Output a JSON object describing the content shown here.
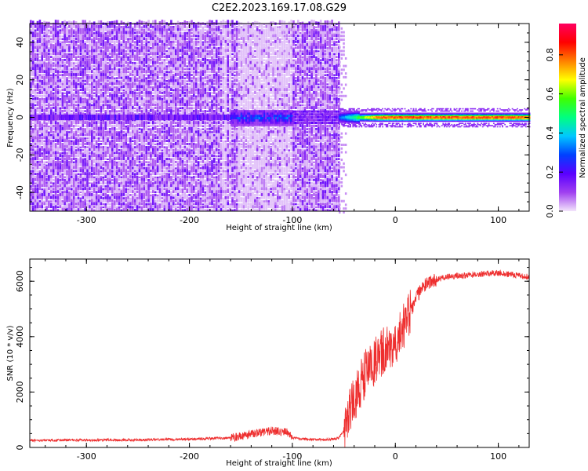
{
  "title": "C2E2.2023.169.17.08.G29",
  "chart_data": [
    {
      "type": "heatmap",
      "xlabel": "Height of straight line (km)",
      "ylabel": "Frequency (Hz)",
      "xlim": [
        -355,
        130
      ],
      "ylim": [
        -50,
        50
      ],
      "x_ticks": [
        -300,
        -200,
        -100,
        0,
        100
      ],
      "x_tick_labels": [
        "-300",
        "-200",
        "-100",
        "0",
        "100"
      ],
      "y_ticks": [
        -40,
        -20,
        0,
        20,
        40
      ],
      "y_tick_labels": [
        "-40",
        "-20",
        "0",
        "20",
        "40"
      ],
      "colorbar": {
        "label": "Normalized spectral amplitude",
        "range": [
          0,
          0.96
        ],
        "ticks": [
          0.0,
          0.2,
          0.4,
          0.6,
          0.8
        ],
        "tick_labels": [
          "0.0",
          "0.2",
          "0.4",
          "0.6",
          "0.8"
        ],
        "colormap": [
          "#f3e4fb",
          "#a040f0",
          "#5a00ff",
          "#0040ff",
          "#00c8ff",
          "#00ff80",
          "#40ff00",
          "#ffff00",
          "#ff8000",
          "#ff0000",
          "#ff0060"
        ]
      },
      "features": [
        {
          "x_range": [
            -355,
            -55
          ],
          "freq_range": [
            -50,
            50
          ],
          "description": "broadband noise"
        },
        {
          "x_range": [
            -160,
            -100
          ],
          "freq_range": [
            -4,
            4
          ],
          "peak_amplitude": 0.35
        },
        {
          "x_range": [
            -55,
            130
          ],
          "freq_range": [
            -3,
            3
          ],
          "peak_amplitude": 0.9
        }
      ]
    },
    {
      "type": "line",
      "xlabel": "Height of straight line (km)",
      "ylabel": "SNR (10 * v/v)",
      "xlim": [
        -355,
        130
      ],
      "ylim": [
        0,
        6800
      ],
      "x_ticks": [
        -300,
        -200,
        -100,
        0,
        100
      ],
      "x_tick_labels": [
        "-300",
        "-200",
        "-100",
        "0",
        "100"
      ],
      "y_ticks": [
        0,
        2000,
        4000,
        6000
      ],
      "y_tick_labels": [
        "0",
        "2000",
        "4000",
        "6000"
      ],
      "color": "#ee2e2e",
      "series": [
        {
          "x": [
            -355,
            -340,
            -320,
            -300,
            -280,
            -260,
            -240,
            -220,
            -200,
            -180,
            -160,
            -150,
            -140,
            -130,
            -120,
            -115,
            -110,
            -105,
            -100,
            -90,
            -80,
            -70,
            -60,
            -55,
            -50,
            -45,
            -40,
            -35,
            -30,
            -25,
            -20,
            -15,
            -10,
            -5,
            0,
            5,
            10,
            15,
            20,
            25,
            30,
            35,
            40,
            50,
            60,
            70,
            80,
            90,
            100,
            110,
            120,
            130
          ],
          "y": [
            250,
            260,
            270,
            260,
            270,
            270,
            280,
            290,
            300,
            320,
            350,
            400,
            480,
            550,
            600,
            580,
            560,
            550,
            350,
            300,
            290,
            280,
            300,
            350,
            600,
            1100,
            1700,
            2200,
            2600,
            2900,
            3100,
            3300,
            3500,
            3700,
            3900,
            4200,
            4500,
            4900,
            5400,
            5700,
            5900,
            6000,
            6050,
            6150,
            6200,
            6220,
            6250,
            6280,
            6300,
            6250,
            6200,
            6150
          ]
        }
      ]
    }
  ]
}
